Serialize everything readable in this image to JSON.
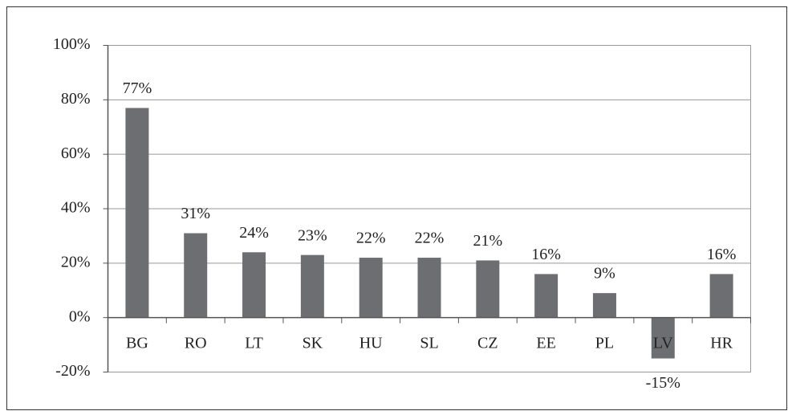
{
  "chart_data": {
    "type": "bar",
    "categories": [
      "BG",
      "RO",
      "LT",
      "SK",
      "HU",
      "SL",
      "CZ",
      "EE",
      "PL",
      "LV",
      "HR"
    ],
    "values": [
      77,
      31,
      24,
      23,
      22,
      22,
      21,
      16,
      9,
      -15,
      16
    ],
    "value_labels": [
      "77%",
      "31%",
      "24%",
      "23%",
      "22%",
      "22%",
      "21%",
      "16%",
      "9%",
      "-15%",
      "16%"
    ],
    "color": "#6d6e71",
    "ylim": [
      -20,
      100
    ],
    "yticks": [
      {
        "value": -20,
        "label": "-20%"
      },
      {
        "value": 0,
        "label": "0%"
      },
      {
        "value": 20,
        "label": "20%"
      },
      {
        "value": 40,
        "label": "40%"
      },
      {
        "value": 60,
        "label": "60%"
      },
      {
        "value": 80,
        "label": "80%"
      },
      {
        "value": 100,
        "label": "100%"
      }
    ],
    "grid": true
  }
}
